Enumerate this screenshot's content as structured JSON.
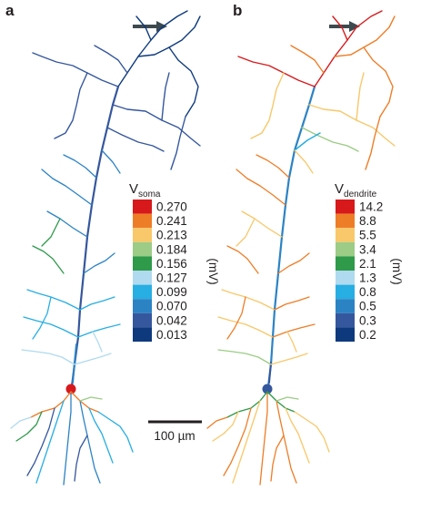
{
  "panels": [
    {
      "id": "a",
      "letter": "a",
      "legend_title_main": "V",
      "legend_title_sub": "soma",
      "unit": "(mV)",
      "legend": [
        {
          "label": "0.270",
          "color": "#d7191c"
        },
        {
          "label": "0.241",
          "color": "#ee7d27"
        },
        {
          "label": "0.213",
          "color": "#f8c86a"
        },
        {
          "label": "0.184",
          "color": "#9ccc86"
        },
        {
          "label": "0.156",
          "color": "#2e9a4a"
        },
        {
          "label": "0.127",
          "color": "#b0daef"
        },
        {
          "label": "0.099",
          "color": "#27aee2"
        },
        {
          "label": "0.070",
          "color": "#2b83c4"
        },
        {
          "label": "0.042",
          "color": "#35579d"
        },
        {
          "label": "0.013",
          "color": "#0e3a7d"
        }
      ]
    },
    {
      "id": "b",
      "letter": "b",
      "legend_title_main": "V",
      "legend_title_sub": "dendrite",
      "unit": "(mV)",
      "legend": [
        {
          "label": "14.2",
          "color": "#d7191c"
        },
        {
          "label": "8.8",
          "color": "#ee7d27"
        },
        {
          "label": "5.5",
          "color": "#f8c86a"
        },
        {
          "label": "3.4",
          "color": "#9ccc86"
        },
        {
          "label": "2.1",
          "color": "#2e9a4a"
        },
        {
          "label": "1.3",
          "color": "#b0daef"
        },
        {
          "label": "0.8",
          "color": "#27aee2"
        },
        {
          "label": "0.5",
          "color": "#2b83c4"
        },
        {
          "label": "0.3",
          "color": "#35579d"
        },
        {
          "label": "0.2",
          "color": "#0e3a7d"
        }
      ]
    }
  ],
  "scale_bar": {
    "label": "100 µm"
  },
  "colors": {
    "arrow": "#3d4a4f",
    "text": "#231f20"
  },
  "icons": [
    "right-arrow-icon",
    "right-arrow-icon"
  ]
}
